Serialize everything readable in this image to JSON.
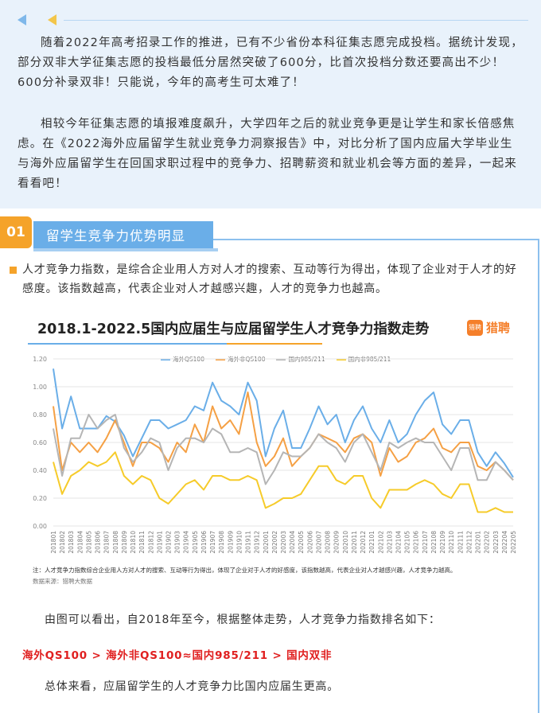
{
  "intro": {
    "paragraph1": "随着2022年高考招录工作的推进，已有不少省份本科征集志愿完成投档。据统计发现，部分双非大学征集志愿的投档最低分居然突破了600分，比首次投档分数还要高出不少！600分补录双非！只能说，今年的高考生可太难了！",
    "paragraph2": "相较今年征集志愿的填报难度飙升，大学四年之后的就业竞争更是让学生和家长倍感焦虑。在《2022海外应届留学生就业竞争力洞察报告》中，对比分析了国内应届大学毕业生与海外应届留学生在回国求职过程中的竞争力、招聘薪资和就业机会等方面的差异，一起来看看吧！"
  },
  "section": {
    "number": "01",
    "title": "留学生竞争力优势明显",
    "description": "人才竞争力指数，是综合企业用人方对人才的搜索、互动等行为得出，体现了企业对于人才的好感度。该指数越高，代表企业对人才越感兴趣，人才的竞争力也越高。"
  },
  "chart_header": {
    "title": "2018.1-2022.5国内应届生与应届留学生人才竞争力指数走势",
    "logo_text": "猎聘",
    "logo_icon_text": "猎聘"
  },
  "chart_note": "注：人才竞争力指数综合企业用人方对人才的搜索、互动等行为得出，体现了企业对于人才的好感度，该指数越高，代表企业对人才越感兴趣，人才竞争力越高。",
  "chart_source": "数据来源：猎聘大数据",
  "conclusion": {
    "lead": "由图可以看出，自2018年至今，根据整体走势，人才竞争力指数排名如下：",
    "ranking": "海外QS100 > 海外非QS100≈国内985/211 > 国内双非",
    "summary": "总体来看，应届留学生的人才竞争力比国内应届生更高。"
  },
  "colors": {
    "qs100": "#6aaee8",
    "non_qs100": "#f5a044",
    "c985": "#b5b5b5",
    "double_non": "#f6cb2a",
    "accent_orange": "#f5a32a",
    "accent_blue": "#6aaee8",
    "ranking_red": "#e02020"
  },
  "chart_data": {
    "type": "line",
    "title": "2018.1-2022.5国内应届生与应届留学生人才竞争力指数走势",
    "ylim": [
      0,
      1.2
    ],
    "yticks": [
      "0.00",
      "0.20",
      "0.40",
      "0.60",
      "0.80",
      "1.00",
      "1.20"
    ],
    "grid": true,
    "legend": "top-center",
    "x": [
      "201801",
      "201802",
      "201803",
      "201804",
      "201805",
      "201806",
      "201807",
      "201808",
      "201809",
      "201810",
      "201811",
      "201812",
      "201901",
      "201902",
      "201903",
      "201904",
      "201905",
      "201906",
      "201907",
      "201908",
      "201909",
      "201910",
      "201911",
      "201912",
      "202001",
      "202002",
      "202003",
      "202004",
      "202005",
      "202006",
      "202007",
      "202008",
      "202009",
      "202010",
      "202011",
      "202012",
      "202101",
      "202102",
      "202103",
      "202104",
      "202105",
      "202106",
      "202107",
      "202108",
      "202109",
      "202110",
      "202111",
      "202112",
      "202201",
      "202202",
      "202203",
      "202204",
      "202205"
    ],
    "series": [
      {
        "name": "海外QS100",
        "values": [
          1.13,
          0.7,
          0.93,
          0.7,
          0.7,
          0.7,
          0.79,
          0.75,
          0.65,
          0.5,
          0.63,
          0.76,
          0.76,
          0.7,
          0.73,
          0.76,
          0.86,
          0.83,
          1.03,
          0.9,
          0.86,
          0.8,
          1.03,
          0.9,
          0.5,
          0.7,
          0.83,
          0.56,
          0.56,
          0.7,
          0.86,
          0.73,
          0.8,
          0.6,
          0.76,
          0.86,
          0.7,
          0.6,
          0.76,
          0.6,
          0.66,
          0.8,
          0.9,
          0.96,
          0.73,
          0.66,
          0.76,
          0.76,
          0.53,
          0.43,
          0.53,
          0.45,
          0.35
        ]
      },
      {
        "name": "海外非QS100",
        "values": [
          0.86,
          0.4,
          0.6,
          0.53,
          0.6,
          0.53,
          0.63,
          0.76,
          0.6,
          0.43,
          0.6,
          0.6,
          0.56,
          0.46,
          0.6,
          0.53,
          0.73,
          0.6,
          0.86,
          0.7,
          0.76,
          0.66,
          0.96,
          0.6,
          0.43,
          0.5,
          0.63,
          0.43,
          0.5,
          0.56,
          0.66,
          0.63,
          0.6,
          0.53,
          0.63,
          0.66,
          0.6,
          0.36,
          0.56,
          0.46,
          0.5,
          0.6,
          0.63,
          0.7,
          0.56,
          0.53,
          0.6,
          0.6,
          0.43,
          0.4,
          0.46,
          0.4,
          0.33
        ]
      },
      {
        "name": "国内985/211",
        "values": [
          0.7,
          0.36,
          0.63,
          0.63,
          0.8,
          0.7,
          0.76,
          0.8,
          0.56,
          0.46,
          0.53,
          0.63,
          0.6,
          0.4,
          0.56,
          0.63,
          0.63,
          0.6,
          0.7,
          0.66,
          0.53,
          0.53,
          0.56,
          0.53,
          0.3,
          0.4,
          0.53,
          0.5,
          0.5,
          0.56,
          0.66,
          0.6,
          0.56,
          0.46,
          0.6,
          0.66,
          0.53,
          0.4,
          0.6,
          0.56,
          0.6,
          0.63,
          0.6,
          0.6,
          0.5,
          0.4,
          0.56,
          0.56,
          0.33,
          0.33,
          0.46,
          0.4,
          0.33
        ]
      },
      {
        "name": "国内非985/211",
        "values": [
          0.46,
          0.23,
          0.36,
          0.4,
          0.46,
          0.43,
          0.46,
          0.53,
          0.36,
          0.3,
          0.36,
          0.33,
          0.2,
          0.16,
          0.23,
          0.3,
          0.33,
          0.26,
          0.36,
          0.36,
          0.33,
          0.33,
          0.36,
          0.33,
          0.13,
          0.16,
          0.2,
          0.2,
          0.23,
          0.33,
          0.43,
          0.43,
          0.33,
          0.3,
          0.36,
          0.36,
          0.2,
          0.13,
          0.26,
          0.26,
          0.26,
          0.3,
          0.33,
          0.3,
          0.23,
          0.2,
          0.3,
          0.3,
          0.1,
          0.1,
          0.13,
          0.1,
          0.1
        ]
      }
    ]
  }
}
